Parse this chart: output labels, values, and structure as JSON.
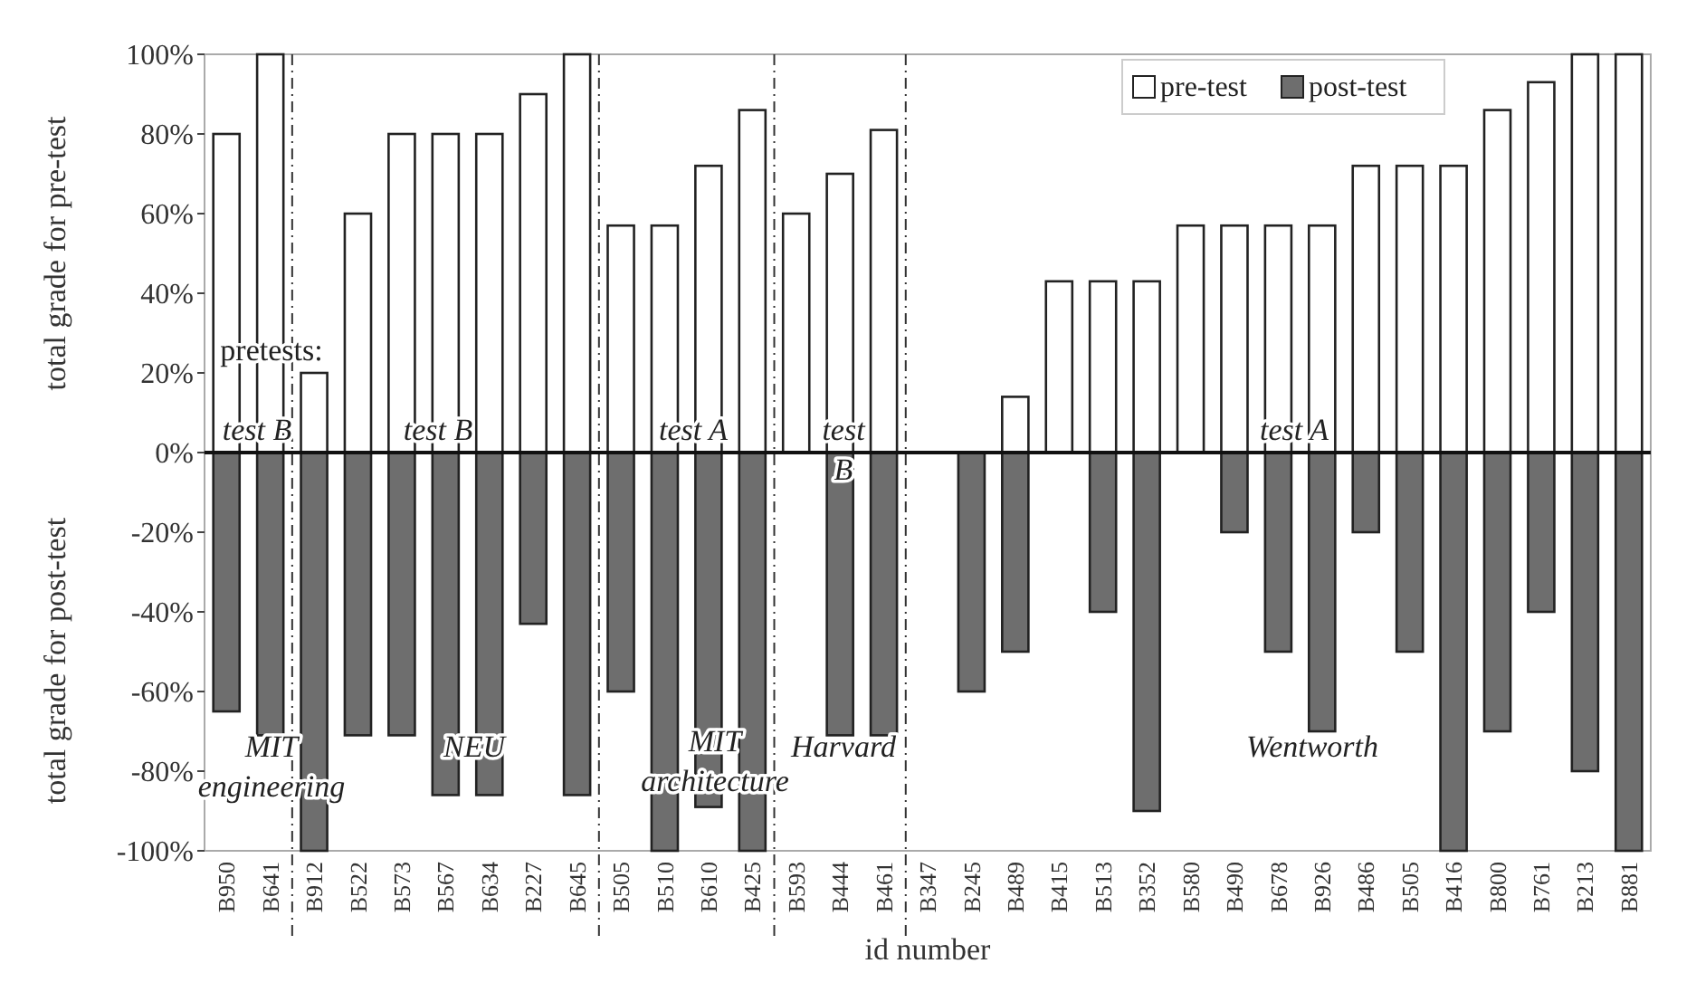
{
  "chart_data": {
    "type": "bar",
    "stacked": true,
    "ylabel": "total grade for pre-test",
    "xlabel": "id number",
    "categories": [
      "B950",
      "B641",
      "B912",
      "B522",
      "B573",
      "B567",
      "B634",
      "B227",
      "B645",
      "B505",
      "B510",
      "B610",
      "B425",
      "B593",
      "B444",
      "B461",
      "B347",
      "B245",
      "B489",
      "B415",
      "B513",
      "B352",
      "B580",
      "B490",
      "B678",
      "B926",
      "B486",
      "B505",
      "B416",
      "B800",
      "B761",
      "B213",
      "B881"
    ],
    "series": [
      {
        "name": "pre-test",
        "color": "#ffffff",
        "values": [
          80,
          100,
          20,
          60,
          80,
          80,
          80,
          90,
          100,
          57,
          57,
          72,
          86,
          60,
          70,
          81,
          null,
          null,
          14,
          43,
          43,
          43,
          57,
          57,
          57,
          57,
          72,
          72,
          72,
          86,
          93,
          100,
          100
        ]
      },
      {
        "name": "post-test",
        "color": "#6e6e6e",
        "values": [
          -65,
          -71,
          -100,
          -71,
          -71,
          -86,
          -86,
          -43,
          -86,
          -60,
          -100,
          -89,
          -100,
          null,
          -71,
          -71,
          null,
          -60,
          -50,
          null,
          -40,
          -90,
          null,
          -20,
          -50,
          -70,
          -20,
          -50,
          -100,
          -70,
          -40,
          -80,
          -100
        ]
      }
    ],
    "ylim": [
      -100,
      100
    ],
    "yticks": [
      {
        "value": -100,
        "label": "-100%"
      },
      {
        "value": -80,
        "label": "-80%"
      },
      {
        "value": -60,
        "label": "-60%"
      },
      {
        "value": -40,
        "label": "-40%"
      },
      {
        "value": -20,
        "label": "-20%"
      },
      {
        "value": 0,
        "label": "0%"
      },
      {
        "value": 20,
        "label": "20%"
      },
      {
        "value": 40,
        "label": "40%"
      },
      {
        "value": 60,
        "label": "60%"
      },
      {
        "value": 80,
        "label": "80%"
      },
      {
        "value": 100,
        "label": "100%"
      }
    ],
    "legend": "top right",
    "annotations": [
      "total grade for post-test",
      "pretests:",
      "test B",
      "test B",
      "test A",
      "test B",
      "test A",
      "MIT engineering",
      "NEU",
      "MIT architecture",
      "Harvard",
      "Wentworth"
    ]
  }
}
